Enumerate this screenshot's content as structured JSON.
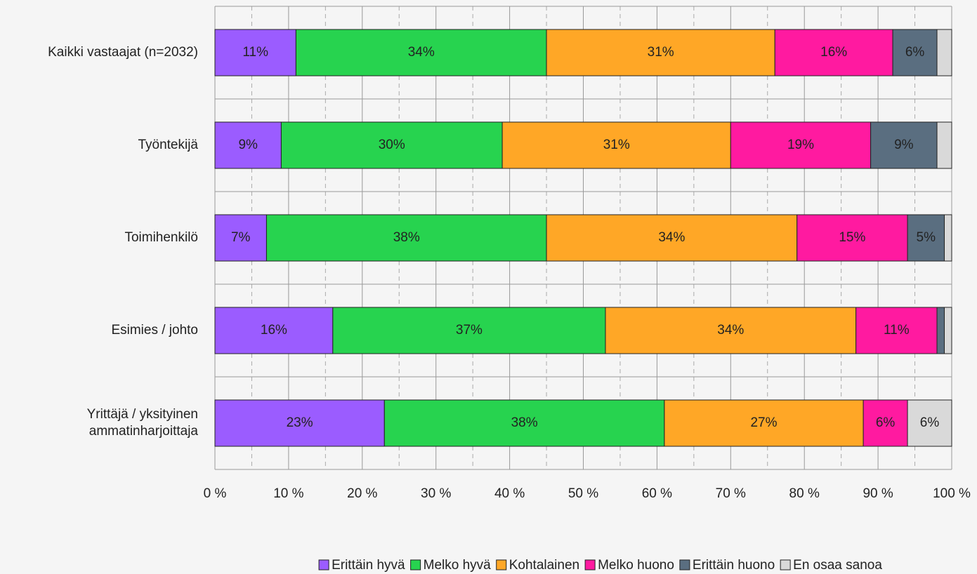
{
  "chart_data": {
    "type": "stacked_barh",
    "categories": [
      "Kaikki vastaajat (n=2032)",
      "Työntekijä",
      "Toimihenkilö",
      "Esimies / johto",
      "Yrittäjä / yksityinen ammatinharjoittaja"
    ],
    "series": [
      {
        "name": "Erittäin hyvä",
        "color": "#9b5cff",
        "values": [
          11,
          9,
          7,
          16,
          23
        ],
        "value_labels": [
          "11%",
          "9%",
          "7%",
          "16%",
          "23%"
        ]
      },
      {
        "name": "Melko hyvä",
        "color": "#27d34f",
        "values": [
          34,
          30,
          38,
          37,
          38
        ],
        "value_labels": [
          "34%",
          "30%",
          "38%",
          "37%",
          "38%"
        ]
      },
      {
        "name": "Kohtalainen",
        "color": "#ffa726",
        "values": [
          31,
          31,
          34,
          34,
          27
        ],
        "value_labels": [
          "31%",
          "31%",
          "34%",
          "34%",
          "27%"
        ]
      },
      {
        "name": "Melko huono",
        "color": "#ff1aa0",
        "values": [
          16,
          19,
          15,
          11,
          6
        ],
        "value_labels": [
          "16%",
          "19%",
          "15%",
          "11%",
          "6%"
        ]
      },
      {
        "name": "Erittäin huono",
        "color": "#5a6e80",
        "values": [
          6,
          9,
          5,
          1,
          0
        ],
        "value_labels": [
          "6%",
          "9%",
          "5%",
          null,
          null
        ]
      },
      {
        "name": "En osaa sanoa",
        "color": "#d9d9d9",
        "values": [
          2,
          2,
          1,
          1,
          6
        ],
        "value_labels": [
          null,
          null,
          null,
          null,
          "6%"
        ]
      }
    ],
    "xlim": [
      0,
      100
    ],
    "xticks": [
      {
        "value": 0,
        "label": "0 %"
      },
      {
        "value": 10,
        "label": "10 %"
      },
      {
        "value": 20,
        "label": "20 %"
      },
      {
        "value": 30,
        "label": "30 %"
      },
      {
        "value": 40,
        "label": "40 %"
      },
      {
        "value": 50,
        "label": "50 %"
      },
      {
        "value": 60,
        "label": "60 %"
      },
      {
        "value": 70,
        "label": "70 %"
      },
      {
        "value": 80,
        "label": "80 %"
      },
      {
        "value": 90,
        "label": "90 %"
      },
      {
        "value": 100,
        "label": "100 %"
      }
    ],
    "minor_xticks": [
      5,
      15,
      25,
      35,
      45,
      55,
      65,
      75,
      85,
      95
    ],
    "grid": true,
    "legend": "bottom"
  }
}
